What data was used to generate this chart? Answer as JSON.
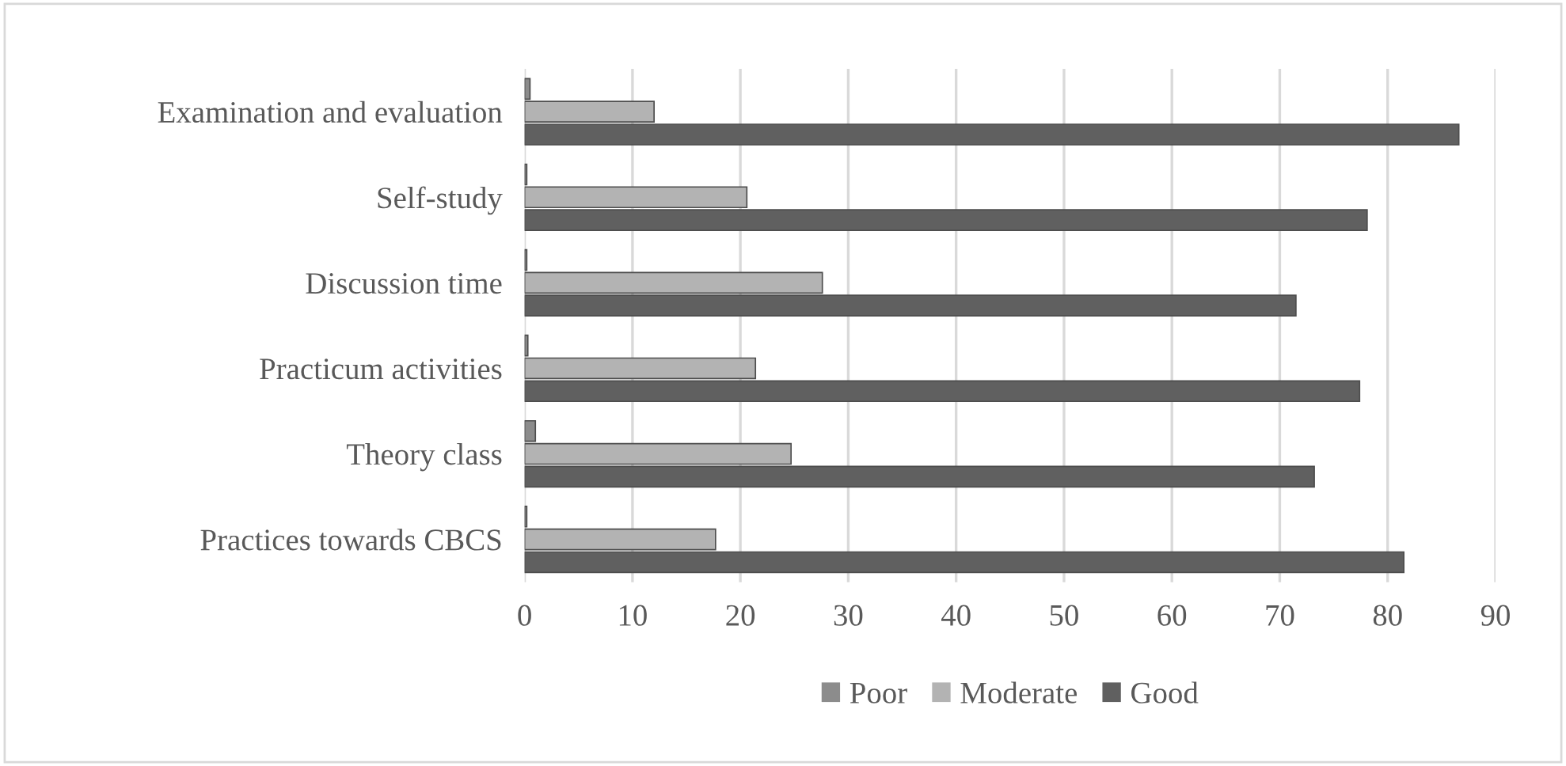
{
  "chart_data": {
    "type": "bar",
    "orientation": "horizontal",
    "categories": [
      "Examination and evaluation",
      "Self-study",
      "Discussion time",
      "Practicum activities",
      "Theory class",
      "Practices towards CBCS"
    ],
    "series": [
      {
        "name": "Poor",
        "color": "#8c8c8c",
        "values": [
          0.5,
          0.2,
          0.2,
          0.3,
          1.0,
          0.2
        ]
      },
      {
        "name": "Moderate",
        "color": "#b3b3b3",
        "values": [
          12,
          20.6,
          27.6,
          21.4,
          24.7,
          17.7
        ]
      },
      {
        "name": "Good",
        "color": "#606060",
        "values": [
          86.6,
          78.1,
          71.5,
          77.4,
          73.2,
          81.5
        ]
      }
    ],
    "xlim": [
      0,
      90
    ],
    "xticks": [
      0,
      10,
      20,
      30,
      40,
      50,
      60,
      70,
      80,
      90
    ],
    "grid": "x",
    "legend": "bottom"
  }
}
